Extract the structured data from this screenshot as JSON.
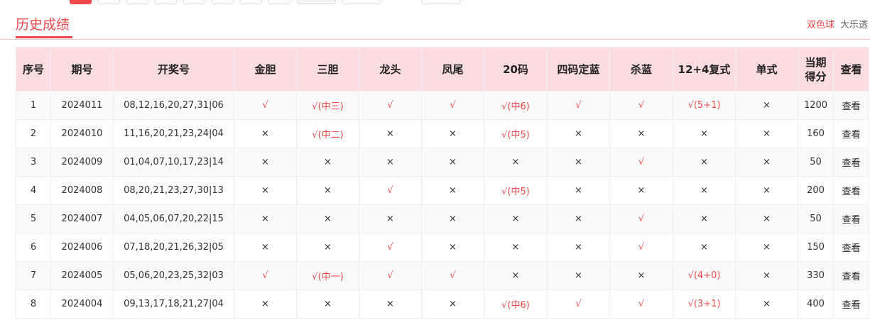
{
  "pagination": {
    "active_page": 1
  },
  "section_title": "历史成绩",
  "lottery_tabs": [
    {
      "label": "双色球",
      "active": true
    },
    {
      "label": "大乐透",
      "active": false
    }
  ],
  "colors": {
    "accent": "#f2484b",
    "header_bg": "#fcdcdf"
  },
  "table": {
    "headers": [
      "序号",
      "期号",
      "开奖号",
      "金胆",
      "三胆",
      "龙头",
      "凤尾",
      "20码",
      "四码定蓝",
      "杀蓝",
      "12+4复式",
      "单式",
      "当期得分",
      "查看"
    ],
    "rows": [
      [
        "1",
        "2024011",
        "08,12,16,20,27,31|06",
        "√",
        "√(中三)",
        "√",
        "√",
        "√(中6)",
        "√",
        "√",
        "√(5+1)",
        "×",
        "1200",
        "查看"
      ],
      [
        "2",
        "2024010",
        "11,16,20,21,23,24|04",
        "×",
        "√(中二)",
        "×",
        "×",
        "√(中5)",
        "×",
        "×",
        "×",
        "×",
        "160",
        "查看"
      ],
      [
        "3",
        "2024009",
        "01,04,07,10,17,23|14",
        "×",
        "×",
        "×",
        "×",
        "×",
        "×",
        "√",
        "×",
        "×",
        "50",
        "查看"
      ],
      [
        "4",
        "2024008",
        "08,20,21,23,27,30|13",
        "×",
        "×",
        "√",
        "×",
        "√(中5)",
        "×",
        "×",
        "×",
        "×",
        "200",
        "查看"
      ],
      [
        "5",
        "2024007",
        "04,05,06,07,20,22|15",
        "×",
        "×",
        "×",
        "×",
        "×",
        "×",
        "√",
        "×",
        "×",
        "50",
        "查看"
      ],
      [
        "6",
        "2024006",
        "07,18,20,21,26,32|05",
        "×",
        "×",
        "√",
        "×",
        "×",
        "×",
        "√",
        "×",
        "×",
        "150",
        "查看"
      ],
      [
        "7",
        "2024005",
        "05,06,20,23,25,32|03",
        "√",
        "√(中一)",
        "√",
        "√",
        "×",
        "×",
        "×",
        "√(4+0)",
        "×",
        "330",
        "查看"
      ],
      [
        "8",
        "2024004",
        "09,13,17,18,21,27|04",
        "×",
        "×",
        "×",
        "×",
        "√(中6)",
        "√",
        "√",
        "√(3+1)",
        "×",
        "400",
        "查看"
      ]
    ]
  }
}
